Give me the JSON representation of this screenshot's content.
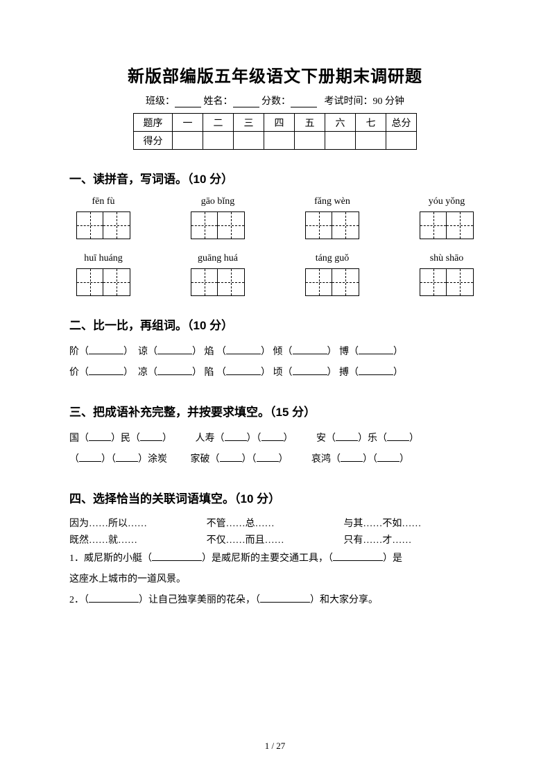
{
  "title": "新版部编版五年级语文下册期末调研题",
  "meta": {
    "class_label": "班级：",
    "name_label": "姓名：",
    "score_label": "分数：",
    "time_label": "考试时间：90 分钟"
  },
  "score_table": {
    "header_label": "题序",
    "score_label": "得分",
    "columns": [
      "一",
      "二",
      "三",
      "四",
      "五",
      "六",
      "七",
      "总分"
    ]
  },
  "section1": {
    "heading": "一、读拼音，写词语。（10 分）",
    "row1": [
      "fēn fù",
      "gāo bǐng",
      "fǎng wèn",
      "yóu yǒng"
    ],
    "row2": [
      "huī huáng",
      "guāng huá",
      "táng guǒ",
      "shù shāo"
    ]
  },
  "section2": {
    "heading": "二、比一比，再组词。（10 分）",
    "row1": [
      "阶",
      "谅",
      "焰",
      "倾",
      "博"
    ],
    "row2": [
      "价",
      "凉",
      "陷",
      "顷",
      "搏"
    ]
  },
  "section3": {
    "heading": "三、把成语补充完整，并按要求填空。（15 分）",
    "items": {
      "a1": "国",
      "a2": "民",
      "b1": "人寿",
      "c1": "安",
      "c2": "乐",
      "d1": "涂炭",
      "e1": "家破",
      "f1": "哀鸿"
    }
  },
  "section4": {
    "heading": "四、选择恰当的关联词语填空。（10 分）",
    "conj": {
      "r1c1": "因为……所以……",
      "r1c2": "不管……总……",
      "r1c3": "与其……不如……",
      "r2c1": "既然……就……",
      "r2c2": "不仅……而且……",
      "r2c3": "只有……才……"
    },
    "q1a": "1．威尼斯的小艇（",
    "q1b": "）是威尼斯的主要交通工具，（",
    "q1c": "）是",
    "q1d": "这座水上城市的一道风景。",
    "q2a": "2．（",
    "q2b": "）让自己独享美丽的花朵，（",
    "q2c": "）和大家分享。"
  },
  "footer": "1 / 27"
}
